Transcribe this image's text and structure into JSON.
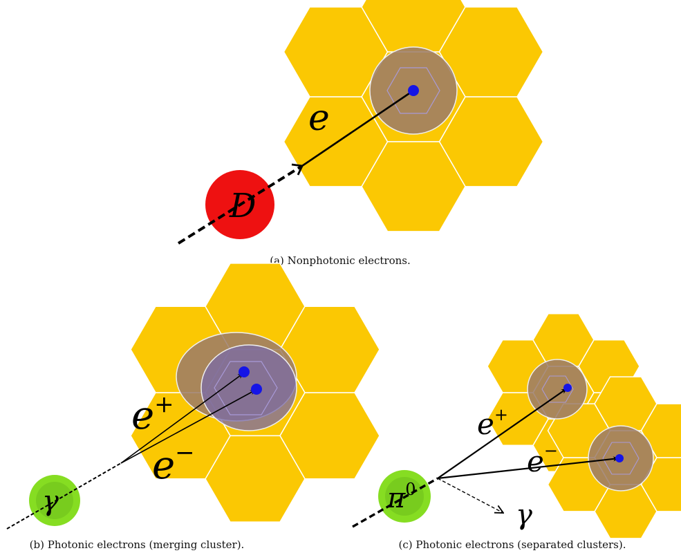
{
  "colors": {
    "hexagon": "#fbc803",
    "hex_edge": "#ffffff",
    "cluster_fill": "#9a7a6a",
    "cluster_merged": "#7a6aa8",
    "hit_dot": "#1515e6",
    "d_meson": "#ee1111",
    "photon_blob": "#86dd22"
  },
  "panel_a": {
    "caption": "(a) Nonphotonic electrons.",
    "parent_label": "D",
    "track_label": "e"
  },
  "panel_b": {
    "caption": "(b) Photonic electrons (merging cluster).",
    "parent_label": "γ",
    "track_plus_label": "e",
    "track_plus_sup": "+",
    "track_minus_label": "e",
    "track_minus_sup": "−"
  },
  "panel_c": {
    "caption": "(c) Photonic electrons (separated clusters).",
    "parent_label": "π",
    "parent_sup": "0",
    "track_plus_label": "e",
    "track_plus_sup": "+",
    "track_minus_label": "e",
    "track_minus_sup": "−",
    "photon_label": "γ"
  }
}
